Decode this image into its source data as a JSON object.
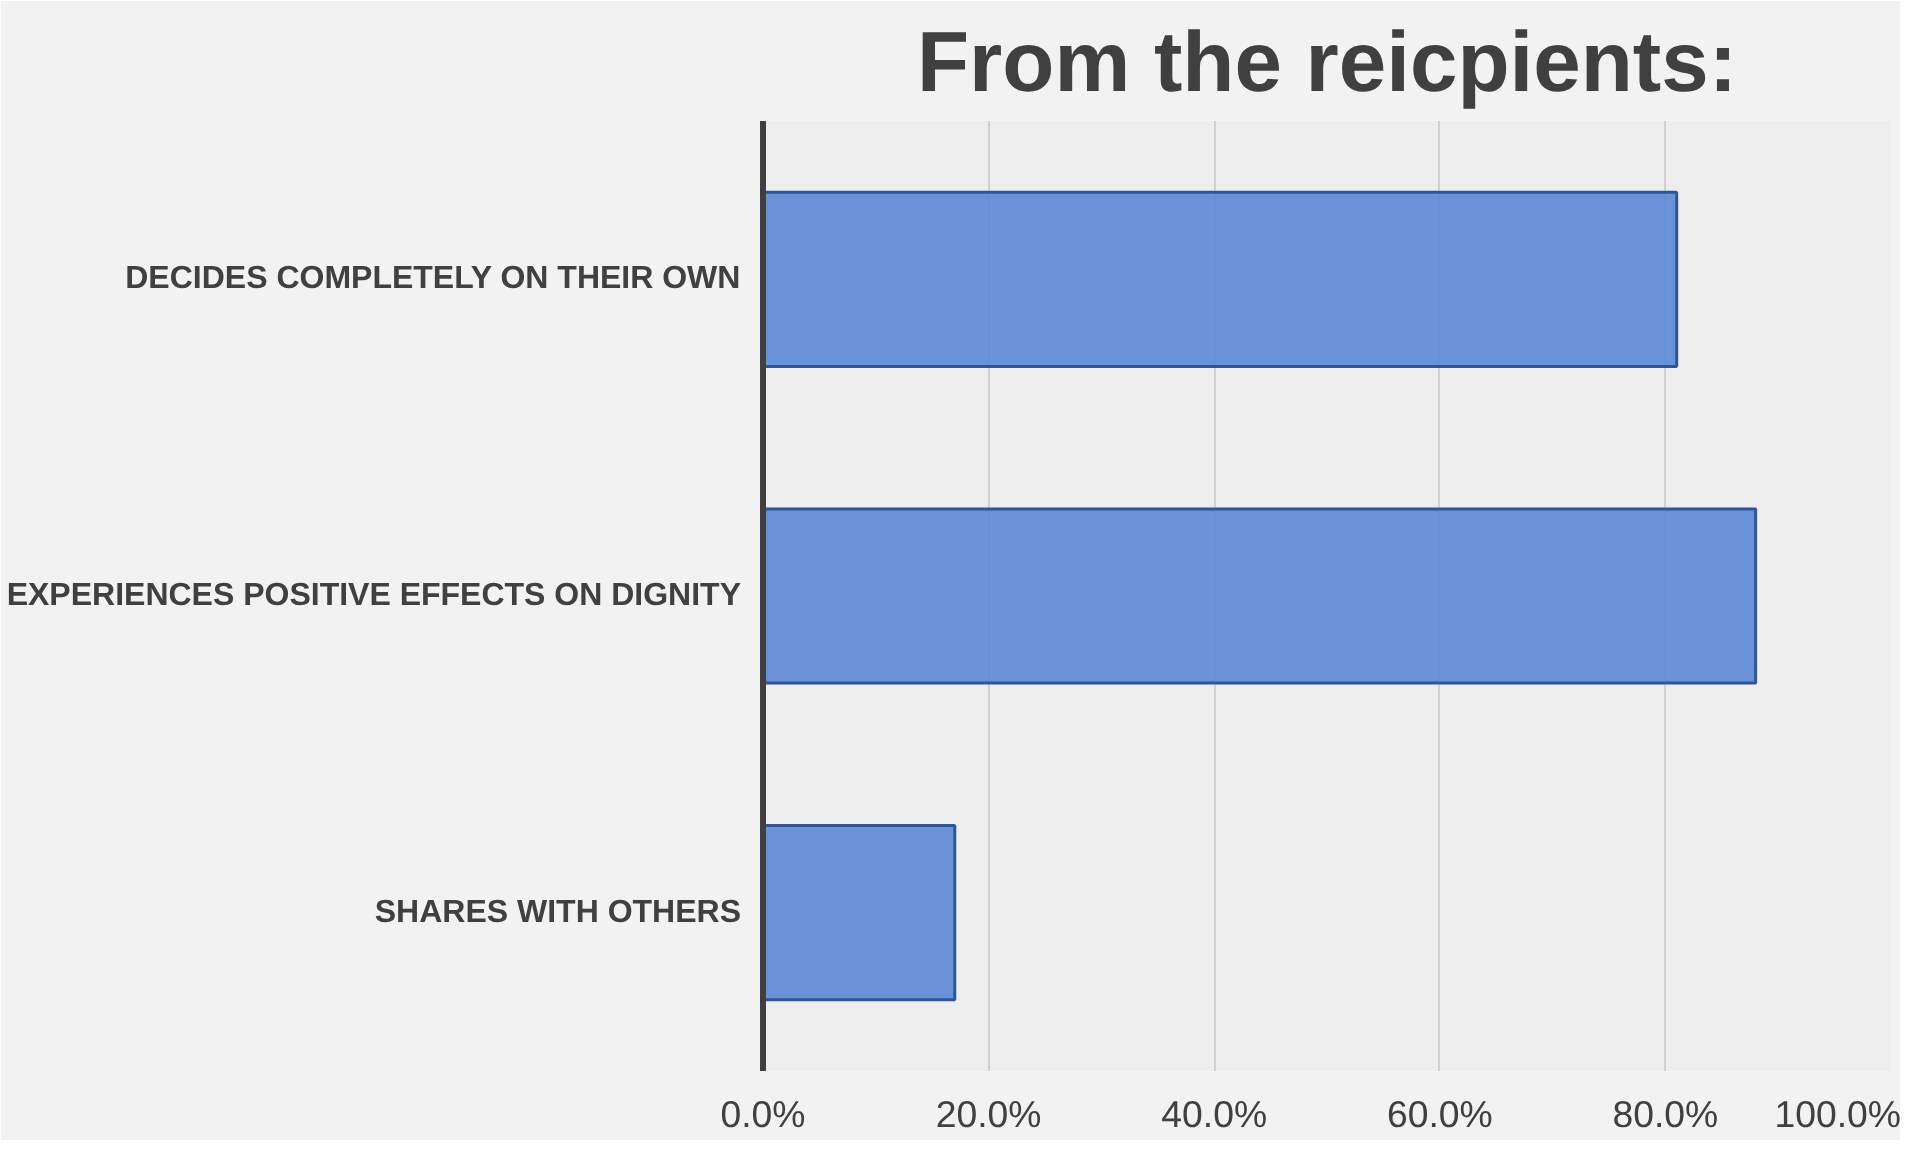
{
  "chart_data": {
    "type": "bar",
    "orientation": "horizontal",
    "title": "From the reicpients:",
    "categories": [
      "DECIDES COMPLETELY ON THEIR OWN",
      "EXPERIENCES POSITIVE EFFECTS ON DIGNITY",
      "SHARES WITH OTHERS"
    ],
    "values": [
      81,
      88,
      17
    ],
    "color": "#5b87d6",
    "xlim": [
      0,
      100
    ],
    "xticks": [
      {
        "value": 0,
        "label": "0.0%"
      },
      {
        "value": 20,
        "label": "20.0%"
      },
      {
        "value": 40,
        "label": "40.0%"
      },
      {
        "value": 60,
        "label": "60.0%"
      },
      {
        "value": 80,
        "label": "80.0%"
      },
      {
        "value": 100,
        "label": "100.0%"
      }
    ],
    "grid": "x"
  }
}
